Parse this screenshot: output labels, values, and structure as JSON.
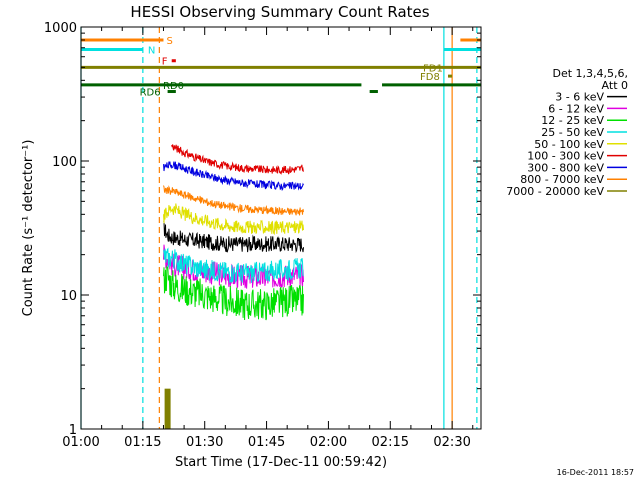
{
  "chart_data": {
    "type": "line",
    "title": "HESSI Observing Summary Count Rates",
    "xlabel": "Start Time (17-Dec-11 00:59:42)",
    "ylabel": "Count Rate (s⁻¹ detector⁻¹)",
    "y_scale": "log",
    "xlim": [
      "01:00",
      "02:37"
    ],
    "ylim": [
      1,
      1000
    ],
    "x_ticks": [
      "01:00",
      "01:15",
      "01:30",
      "01:45",
      "02:00",
      "02:15",
      "02:30"
    ],
    "y_ticks": [
      {
        "value": 1,
        "label": "1"
      },
      {
        "value": 10,
        "label": "10"
      },
      {
        "value": 100,
        "label": "100"
      },
      {
        "value": 1000,
        "label": "1000"
      }
    ],
    "legend": {
      "position": "right",
      "header": [
        "Det 1,3,4,5,6,",
        "Att 0"
      ],
      "entries": [
        {
          "label": "3 - 6 keV",
          "color": "#000000"
        },
        {
          "label": "6 - 12 keV",
          "color": "#e000e0"
        },
        {
          "label": "12 - 25 keV",
          "color": "#00e000"
        },
        {
          "label": "25 - 50 keV",
          "color": "#00e0e0"
        },
        {
          "label": "50 - 100 keV",
          "color": "#e0e000"
        },
        {
          "label": "100 - 300 keV",
          "color": "#e00000"
        },
        {
          "label": "300 - 800 keV",
          "color": "#0000e0"
        },
        {
          "label": "800 - 7000 keV",
          "color": "#ff8000"
        },
        {
          "label": "7000 - 20000 keV",
          "color": "#808000"
        }
      ]
    },
    "series": [
      {
        "name": "3 - 6 keV",
        "color": "#000000",
        "noise": 0.06,
        "x": [
          "01:20",
          "01:21",
          "01:22",
          "01:25",
          "01:30",
          "01:35",
          "01:40",
          "01:45",
          "01:50",
          "01:54"
        ],
        "y": [
          32,
          28,
          27,
          26,
          25,
          24,
          24,
          24,
          24,
          24
        ]
      },
      {
        "name": "6 - 12 keV",
        "color": "#e000e0",
        "noise": 0.09,
        "x": [
          "01:20",
          "01:21",
          "01:22",
          "01:25",
          "01:30",
          "01:35",
          "01:40",
          "01:45",
          "01:50",
          "01:54"
        ],
        "y": [
          20,
          19,
          17,
          16,
          15,
          14,
          13.5,
          13.5,
          14,
          14
        ]
      },
      {
        "name": "12 - 25 keV",
        "color": "#00e000",
        "noise": 0.12,
        "x": [
          "01:20",
          "01:21",
          "01:22",
          "01:25",
          "01:30",
          "01:35",
          "01:40",
          "01:45",
          "01:50",
          "01:54"
        ],
        "y": [
          13,
          14,
          12,
          11,
          10,
          9,
          8.5,
          8.5,
          9,
          9
        ]
      },
      {
        "name": "25 - 50 keV",
        "color": "#00e0e0",
        "noise": 0.08,
        "x": [
          "01:20",
          "01:21",
          "01:22",
          "01:25",
          "01:30",
          "01:35",
          "01:40",
          "01:45",
          "01:50",
          "01:54"
        ],
        "y": [
          20,
          19,
          19,
          17,
          15.5,
          15,
          14.5,
          15,
          15.5,
          16
        ]
      },
      {
        "name": "50 - 100 keV",
        "color": "#e0e000",
        "noise": 0.05,
        "x": [
          "01:20",
          "01:21",
          "01:22",
          "01:25",
          "01:30",
          "01:35",
          "01:40",
          "01:45",
          "01:50",
          "01:54"
        ],
        "y": [
          38,
          42,
          45,
          40,
          36,
          33,
          32,
          32,
          32,
          32
        ]
      },
      {
        "name": "100 - 300 keV",
        "color": "#e00000",
        "noise": 0.03,
        "x": [
          "01:22",
          "01:23",
          "01:25",
          "01:30",
          "01:35",
          "01:40",
          "01:45",
          "01:50",
          "01:54"
        ],
        "y": [
          130,
          125,
          115,
          100,
          92,
          88,
          86,
          86,
          88
        ]
      },
      {
        "name": "300 - 800 keV",
        "color": "#0000e0",
        "noise": 0.03,
        "x": [
          "01:20",
          "01:21",
          "01:22",
          "01:25",
          "01:30",
          "01:35",
          "01:40",
          "01:45",
          "01:50",
          "01:54"
        ],
        "y": [
          90,
          92,
          95,
          88,
          78,
          72,
          68,
          66,
          65,
          65
        ]
      },
      {
        "name": "800 - 7000 keV",
        "color": "#ff8000",
        "noise": 0.03,
        "x": [
          "01:20",
          "01:21",
          "01:22",
          "01:25",
          "01:30",
          "01:35",
          "01:40",
          "01:45",
          "01:50",
          "01:54"
        ],
        "y": [
          62,
          60,
          60,
          56,
          50,
          46,
          44,
          43,
          42,
          42
        ]
      },
      {
        "name": "7000 - 20000 keV",
        "color": "#808000",
        "noise": 0,
        "bars": [
          {
            "x": "01:21",
            "y": 2
          }
        ]
      }
    ],
    "flag_bars": [
      {
        "label": "S",
        "color": "#ff8000",
        "y": 800,
        "segments": [
          [
            "01:00",
            "01:20"
          ],
          [
            "02:32",
            "02:37"
          ]
        ]
      },
      {
        "label": "N",
        "color": "#00e0e0",
        "y": 680,
        "segments": [
          [
            "01:00",
            "01:15"
          ],
          [
            "02:28",
            "02:37"
          ]
        ]
      },
      {
        "label": "F",
        "color": "#e00000",
        "y": 560,
        "segments": [
          [
            "01:22",
            "01:23"
          ]
        ]
      },
      {
        "label": "FD1",
        "color": "#808000",
        "y": 500,
        "segments": [
          [
            "01:00",
            "02:37"
          ]
        ]
      },
      {
        "label": "FD8",
        "color": "#808000",
        "y": 430,
        "segments": [
          [
            "02:29",
            "02:30"
          ]
        ]
      },
      {
        "label": "RD0",
        "color": "#006000",
        "y": 370,
        "segments": [
          [
            "01:00",
            "02:08"
          ],
          [
            "02:13",
            "02:37"
          ]
        ]
      },
      {
        "label": "RD6",
        "color": "#006000",
        "y": 330,
        "segments": [
          [
            "01:21",
            "01:23"
          ],
          [
            "02:10",
            "02:12"
          ]
        ]
      }
    ],
    "vlines": [
      {
        "x": "01:00",
        "color": "#00e0e0",
        "style": "solid"
      },
      {
        "x": "01:15",
        "color": "#00e0e0",
        "style": "dashed"
      },
      {
        "x": "01:19",
        "color": "#ff8000",
        "style": "dashed"
      },
      {
        "x": "02:28",
        "color": "#00e0e0",
        "style": "solid"
      },
      {
        "x": "02:30",
        "color": "#ff8000",
        "style": "solid"
      },
      {
        "x": "02:36",
        "color": "#00e0e0",
        "style": "dashed"
      }
    ],
    "timestamp": "16-Dec-2011 18:57"
  }
}
